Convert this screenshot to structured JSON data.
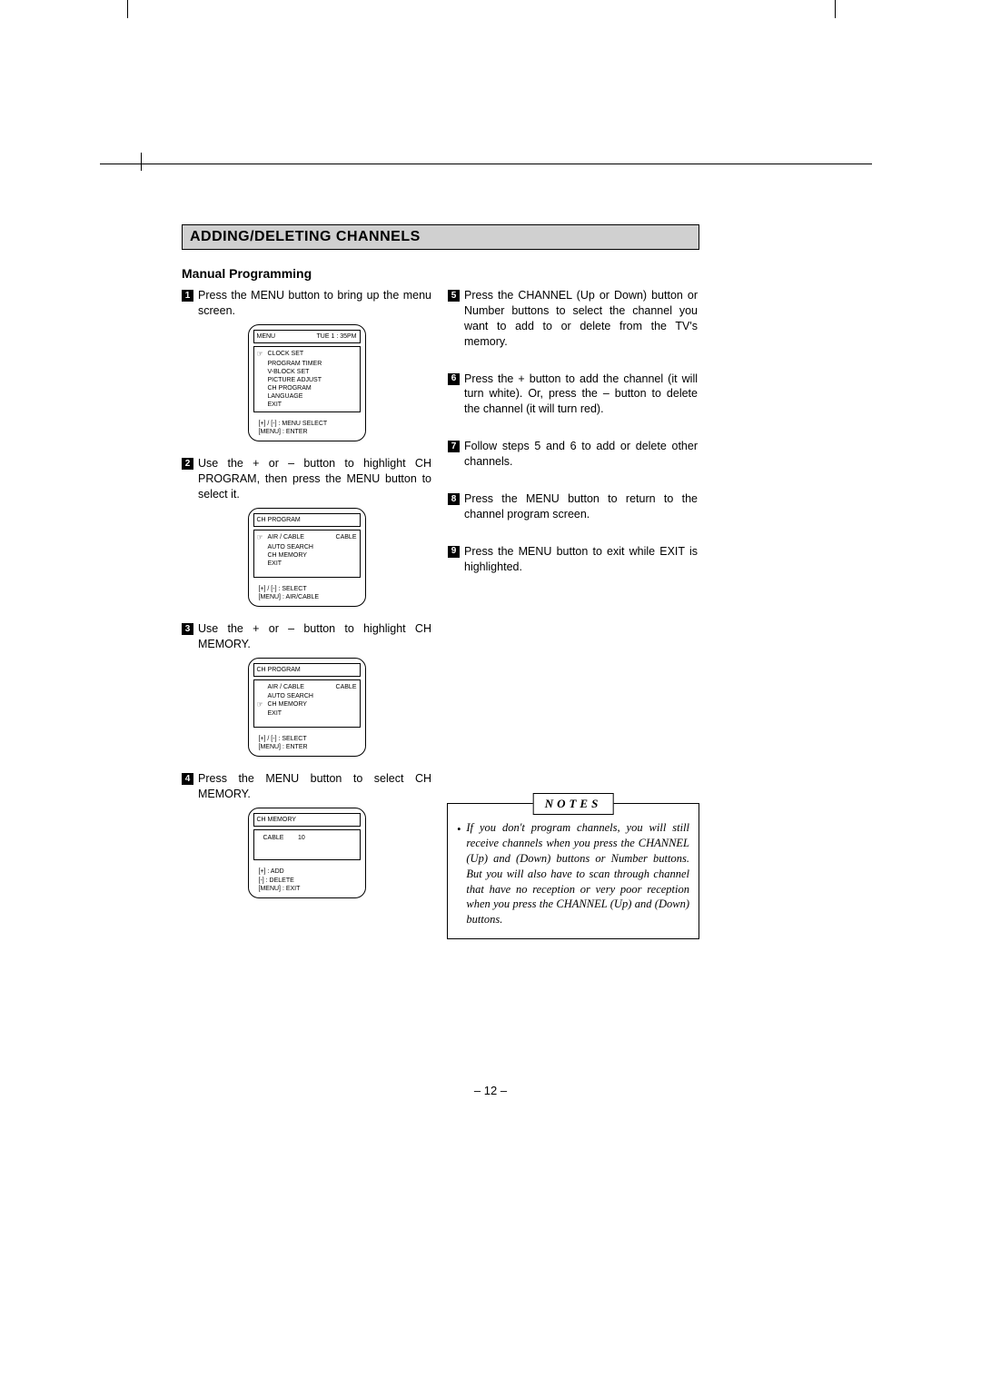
{
  "section_title": "ADDING/DELETING CHANNELS",
  "sub_title": "Manual Programming",
  "page_number": "– 12 –",
  "left_steps": [
    {
      "n": "1",
      "text": "Press the MENU button to bring up the menu screen."
    },
    {
      "n": "2",
      "text": "Use the + or – button to highlight CH PROGRAM, then press the MENU button to select it."
    },
    {
      "n": "3",
      "text": "Use the + or – button to highlight CH MEMORY."
    },
    {
      "n": "4",
      "text": "Press the MENU button to select CH MEMORY."
    }
  ],
  "right_steps": [
    {
      "n": "5",
      "text": "Press the CHANNEL (Up or Down) button or Number buttons to select the channel you want to add to or delete from the TV's memory."
    },
    {
      "n": "6",
      "text": "Press the + button to add the channel (it will turn white). Or, press the – button to delete the channel (it will turn red)."
    },
    {
      "n": "7",
      "text": "Follow steps 5 and 6 to add or delete other channels."
    },
    {
      "n": "8",
      "text": "Press the MENU button to return to the channel program screen."
    },
    {
      "n": "9",
      "text": "Press the MENU button to exit while EXIT is highlighted."
    }
  ],
  "mock1": {
    "title_left": "MENU",
    "title_right": "TUE  1 : 35PM",
    "ptr_index": 0,
    "items": [
      "CLOCK SET",
      "PROGRAM TIMER",
      "V-BLOCK SET",
      "PICTURE ADJUST",
      "CH PROGRAM",
      "LANGUAGE",
      "EXIT"
    ],
    "hint1": "[+] / [-] : MENU SELECT",
    "hint2": "[MENU] : ENTER"
  },
  "mock2": {
    "title": "CH PROGRAM",
    "ptr_index": 0,
    "items": [
      [
        "AIR / CABLE",
        "CABLE"
      ],
      [
        "AUTO SEARCH",
        ""
      ],
      [
        "CH MEMORY",
        ""
      ],
      [
        "EXIT",
        ""
      ]
    ],
    "hint1": "[+] / [-]   : SELECT",
    "hint2": "[MENU] :  AIR/CABLE"
  },
  "mock3": {
    "title": "CH PROGRAM",
    "ptr_index": 2,
    "items": [
      [
        "AIR / CABLE",
        "CABLE"
      ],
      [
        "AUTO SEARCH",
        ""
      ],
      [
        "CH MEMORY",
        ""
      ],
      [
        "EXIT",
        ""
      ]
    ],
    "hint1": "[+] / [-]   : SELECT",
    "hint2": "[MENU] :  ENTER"
  },
  "mock4": {
    "title": "CH MEMORY",
    "body_line": "CABLE        10",
    "hint1": "[+]         : ADD",
    "hint2": "[-]          : DELETE",
    "hint3": "[MENU] : EXIT"
  },
  "notes": {
    "label": "NOTES",
    "text": "If you don't program channels, you will still receive channels when you press the CHANNEL (Up) and (Down) buttons or Number buttons. But you will also have to scan through channel that have no reception or very poor reception when you press the CHANNEL (Up) and (Down) buttons."
  }
}
